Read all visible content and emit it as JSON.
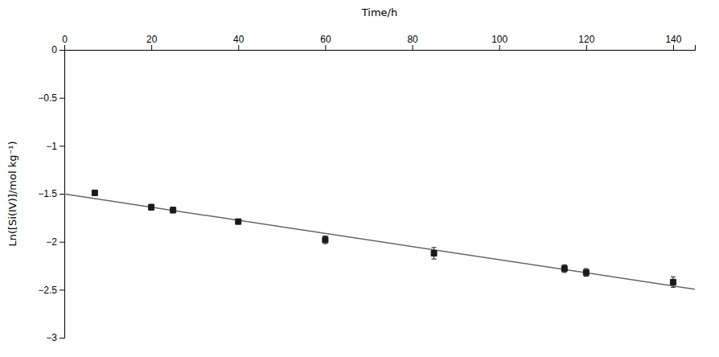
{
  "chart_data": {
    "type": "scatter",
    "x_label": "Time/h",
    "y_label": "Ln([Si(IV)]/mol kg⁻¹)",
    "x": [
      7,
      20,
      25,
      40,
      60,
      85,
      115,
      120,
      140
    ],
    "series": [
      {
        "type": "scatter",
        "marker": "square",
        "color": "#1a1a1a",
        "values": [
          -1.49,
          -1.64,
          -1.67,
          -1.79,
          -1.98,
          -2.12,
          -2.28,
          -2.32,
          -2.42
        ],
        "errors": [
          0.025,
          0.03,
          0.03,
          0.025,
          0.04,
          0.06,
          0.04,
          0.04,
          0.055
        ]
      },
      {
        "type": "line",
        "line_style": "solid",
        "color": "#666666",
        "x": [
          0,
          145
        ],
        "values": [
          -1.5027,
          -2.4945
        ]
      }
    ],
    "xlim": [
      0,
      145
    ],
    "ylim": [
      -3.0,
      0.0
    ],
    "xticks": [
      0,
      20,
      40,
      60,
      80,
      100,
      120,
      140
    ],
    "yticks": [
      0,
      {
        "value": -0.5,
        "label": "−0.5"
      },
      {
        "value": -1.0,
        "label": "−1"
      },
      {
        "value": -1.5,
        "label": "−1.5"
      },
      {
        "value": -2.0,
        "label": "−2"
      },
      {
        "value": -2.5,
        "label": "−2.5"
      },
      {
        "value": -3.0,
        "label": "−3"
      }
    ],
    "grid": false
  }
}
